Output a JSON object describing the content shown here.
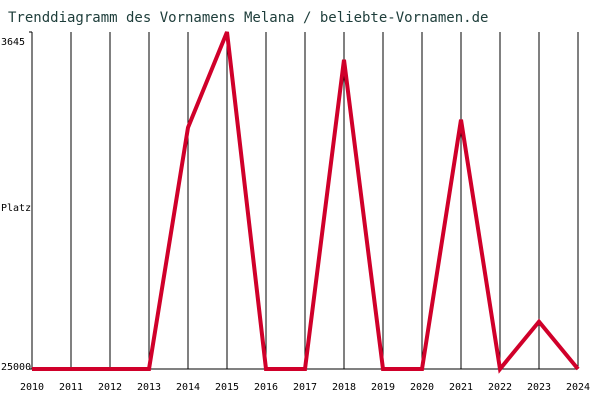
{
  "chart_data": {
    "type": "line",
    "title": "Trenddiagramm des Vornamens Melana / beliebte-Vornamen.de",
    "y_label": "Platz",
    "x": [
      2010,
      2011,
      2012,
      2013,
      2014,
      2015,
      2016,
      2017,
      2018,
      2019,
      2020,
      2021,
      2022,
      2023,
      2024
    ],
    "values": [
      25000,
      25000,
      25000,
      25000,
      9700,
      3645,
      25000,
      25000,
      5400,
      25000,
      25000,
      9200,
      25000,
      22000,
      25000
    ],
    "color": "#d0002a",
    "xlim": [
      2010,
      2024
    ],
    "xticks": [
      2010,
      2011,
      2012,
      2013,
      2014,
      2015,
      2016,
      2017,
      2018,
      2019,
      2020,
      2021,
      2022,
      2023,
      2024
    ],
    "ylim": [
      25000,
      3645
    ],
    "yticks": [
      3645,
      25000
    ],
    "grid": true
  }
}
